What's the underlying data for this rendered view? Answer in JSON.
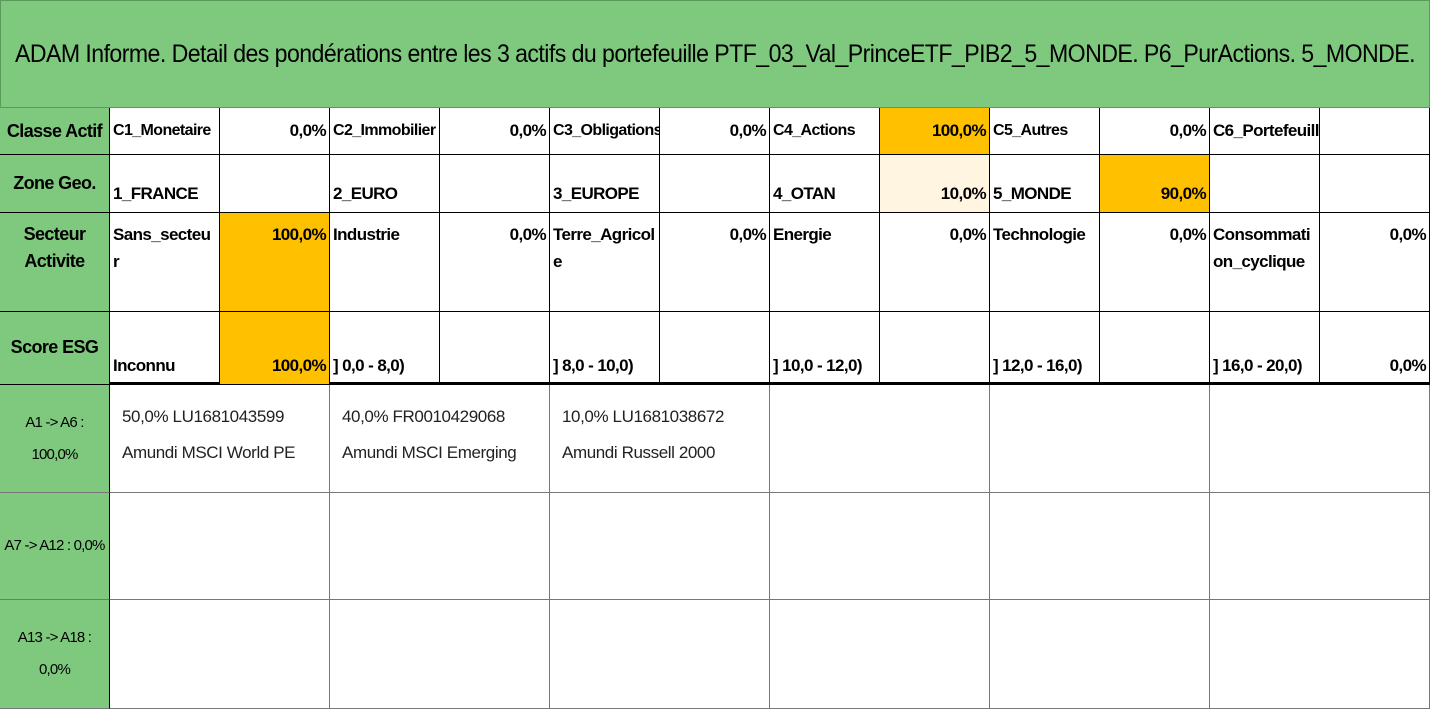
{
  "title": "ADAM Informe. Detail des pondérations entre les 3 actifs du portefeuille PTF_03_Val_PrinceETF_PIB2_5_MONDE. P6_PurActions. 5_MONDE.",
  "colors": {
    "header_green": "#7fc97f",
    "highlight_orange": "#ffc000",
    "highlight_cream": "#fff5e1"
  },
  "classe_actif": {
    "header": "Classe Actif",
    "items": [
      {
        "label": "C1_Monetaire",
        "value": "0,0%"
      },
      {
        "label": "C2_Immobilier",
        "value": "0,0%"
      },
      {
        "label": "C3_Obligations",
        "value": "0,0%"
      },
      {
        "label": "C4_Actions",
        "value": "100,0%"
      },
      {
        "label": "C5_Autres",
        "value": "0,0%"
      },
      {
        "label": "C6_Portefeuill",
        "value": ""
      }
    ]
  },
  "zone_geo": {
    "header": "Zone Geo.",
    "items": [
      {
        "label": "1_FRANCE",
        "value": ""
      },
      {
        "label": "2_EURO",
        "value": ""
      },
      {
        "label": "3_EUROPE",
        "value": ""
      },
      {
        "label": "4_OTAN",
        "value": "10,0%"
      },
      {
        "label": "5_MONDE",
        "value": "90,0%"
      },
      {
        "label": "",
        "value": ""
      }
    ]
  },
  "secteur": {
    "header": "Secteur Activite",
    "items": [
      {
        "label": "Sans_secteur",
        "value": "100,0%"
      },
      {
        "label": "Industrie",
        "value": "0,0%"
      },
      {
        "label": "Terre_Agricole",
        "value": "0,0%"
      },
      {
        "label": "Energie",
        "value": "0,0%"
      },
      {
        "label": "Technologie",
        "value": "0,0%"
      },
      {
        "label": "Consommation_cyclique",
        "value": "0,0%"
      }
    ]
  },
  "esg": {
    "header": "Score ESG",
    "items": [
      {
        "label": "Inconnu",
        "value": "100,0%"
      },
      {
        "label": "] 0,0 - 8,0)",
        "value": ""
      },
      {
        "label": "] 8,0 - 10,0)",
        "value": ""
      },
      {
        "label": "] 10,0 - 12,0)",
        "value": ""
      },
      {
        "label": "] 12,0 - 16,0)",
        "value": ""
      },
      {
        "label": "] 16,0 - 20,0)",
        "value": "0,0%"
      }
    ]
  },
  "assets": {
    "groups": [
      {
        "header_line1": "A1 -> A6 :",
        "header_line2": "100,0%",
        "items": [
          {
            "line1": "50,0% LU1681043599",
            "line2": "Amundi MSCI World PE"
          },
          {
            "line1": "40,0% FR0010429068",
            "line2": "Amundi MSCI Emerging"
          },
          {
            "line1": "10,0% LU1681038672",
            "line2": "Amundi Russell 2000"
          }
        ]
      },
      {
        "header_line1": "A7 -> A12 : 0,0%",
        "header_line2": ""
      },
      {
        "header_line1": "A13 -> A18 :",
        "header_line2": "0,0%"
      }
    ]
  }
}
